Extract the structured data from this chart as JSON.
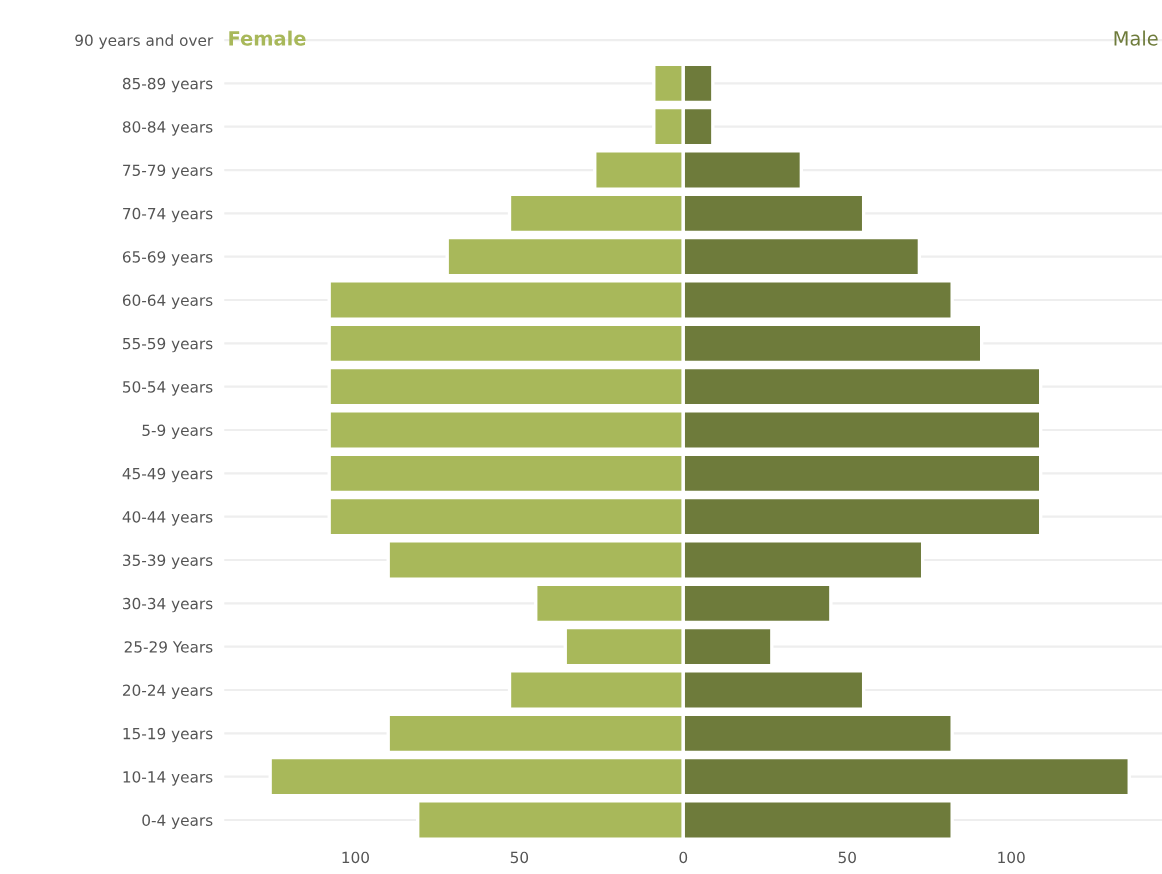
{
  "chart_data": {
    "type": "bar",
    "orientation": "horizontal",
    "categories": [
      "90 years and over",
      "85-89 years",
      "80-84 years",
      "75-79 years",
      "70-74 years",
      "65-69 years",
      "60-64 years",
      "55-59 years",
      "50-54 years",
      "5-9 years",
      "45-49 years",
      "40-44 years",
      "35-39 years",
      "30-34 years",
      "25-29 Years",
      "20-24 years",
      "15-19 years",
      "10-14 years",
      "0-4 years"
    ],
    "series": [
      {
        "name": "Female",
        "color": "#a8b85a",
        "values": [
          null,
          -9,
          -9,
          -27,
          -53,
          -72,
          -108,
          -108,
          -108,
          -108,
          -108,
          -108,
          -90,
          -45,
          -36,
          -53,
          -90,
          -126,
          -81
        ]
      },
      {
        "name": "Male",
        "color": "#6e7b3b",
        "values": [
          null,
          9,
          9,
          36,
          55,
          72,
          82,
          91,
          109,
          109,
          109,
          109,
          73,
          45,
          27,
          55,
          82,
          136,
          82
        ]
      }
    ],
    "xlim": [
      -140,
      146
    ],
    "xticks": [
      {
        "value": -100,
        "label": "100"
      },
      {
        "value": -50,
        "label": "50"
      },
      0,
      50,
      100
    ],
    "stacked": true,
    "grid": "y",
    "legend": false
  }
}
